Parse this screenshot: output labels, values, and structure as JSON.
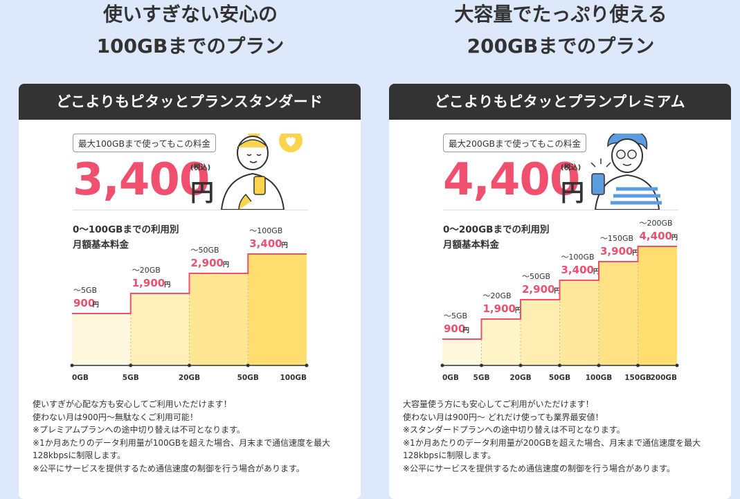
{
  "left": {
    "heading_line1": "使いすぎない安心の",
    "heading_line2": "100GBまでのプラン",
    "card_title": "どこよりもピタッとプランスタンダード",
    "tag": "最大100GBまで使ってもこの料金",
    "price": "3,400",
    "yen": "円",
    "tax": "(税込)",
    "chart_title_1": "0〜100GBまでの利用別",
    "chart_title_2": "月額基本料金",
    "steps": [
      {
        "gb": "〜5GB",
        "price": "900"
      },
      {
        "gb": "〜20GB",
        "price": "1,900"
      },
      {
        "gb": "〜50GB",
        "price": "2,900"
      },
      {
        "gb": "〜100GB",
        "price": "3,400"
      }
    ],
    "ticks": [
      "0GB",
      "5GB",
      "20GB",
      "50GB",
      "100GB"
    ],
    "notes": [
      "使いすぎが心配な方も安心してご利用いただけます！",
      "使わない月は900円〜無駄なくご利用可能！",
      "※プレミアムプランへの途中切り替えは不可となります。",
      "※1か月あたりのデータ利用量が100GBを超えた場合、月末まで通信速度を最大",
      "128kbpsに制限します。",
      "※公平にサービスを提供するため通信速度の制御を行う場合があります。"
    ]
  },
  "right": {
    "heading_line1": "大容量でたっぷり使える",
    "heading_line2": "200GBまでのプラン",
    "card_title": "どこよりもピタッとプランプレミアム",
    "tag": "最大200GBまで使ってもこの料金",
    "price": "4,400",
    "yen": "円",
    "tax": "(税込)",
    "chart_title_1": "0〜200GBまでの利用別",
    "chart_title_2": "月額基本料金",
    "steps": [
      {
        "gb": "〜5GB",
        "price": "900"
      },
      {
        "gb": "〜20GB",
        "price": "1,900"
      },
      {
        "gb": "〜50GB",
        "price": "2,900"
      },
      {
        "gb": "〜100GB",
        "price": "3,400"
      },
      {
        "gb": "〜150GB",
        "price": "3,900"
      },
      {
        "gb": "〜200GB",
        "price": "4,400"
      }
    ],
    "ticks": [
      "0GB",
      "5GB",
      "20GB",
      "50GB",
      "100GB",
      "150GB",
      "200GB"
    ],
    "notes": [
      "大容量使う方にも安心してご利用がいただけます！",
      "使わない月は900円〜 どれだけ使っても業界最安値！",
      "※スタンダードプランへの途中切り替えは不可となります。",
      "※1か月あたりのデータ利用量が200GBを超えた場合、月末まで通信速度を最大",
      "128kbpsに制限します。",
      "※公平にサービスを提供するため通信速度の制御を行う場合があります。"
    ]
  },
  "colors": {
    "accent": "#f0506e",
    "dark": "#333333",
    "bg": "#dde8fb",
    "bar_light": "#fff7dd",
    "bar_dark": "#ffdd6e"
  },
  "price_unit": "円",
  "chart_data": [
    {
      "type": "bar",
      "categories": [
        "〜5GB",
        "〜20GB",
        "〜50GB",
        "〜100GB"
      ],
      "values": [
        900,
        1900,
        2900,
        3400
      ],
      "x_ticks": [
        "0GB",
        "5GB",
        "20GB",
        "50GB",
        "100GB"
      ],
      "title": "0〜100GBまでの利用別 月額基本料金"
    },
    {
      "type": "bar",
      "categories": [
        "〜5GB",
        "〜20GB",
        "〜50GB",
        "〜100GB",
        "〜150GB",
        "〜200GB"
      ],
      "values": [
        900,
        1900,
        2900,
        3400,
        3900,
        4400
      ],
      "x_ticks": [
        "0GB",
        "5GB",
        "20GB",
        "50GB",
        "100GB",
        "150GB",
        "200GB"
      ],
      "title": "0〜200GBまでの利用別 月額基本料金"
    }
  ]
}
